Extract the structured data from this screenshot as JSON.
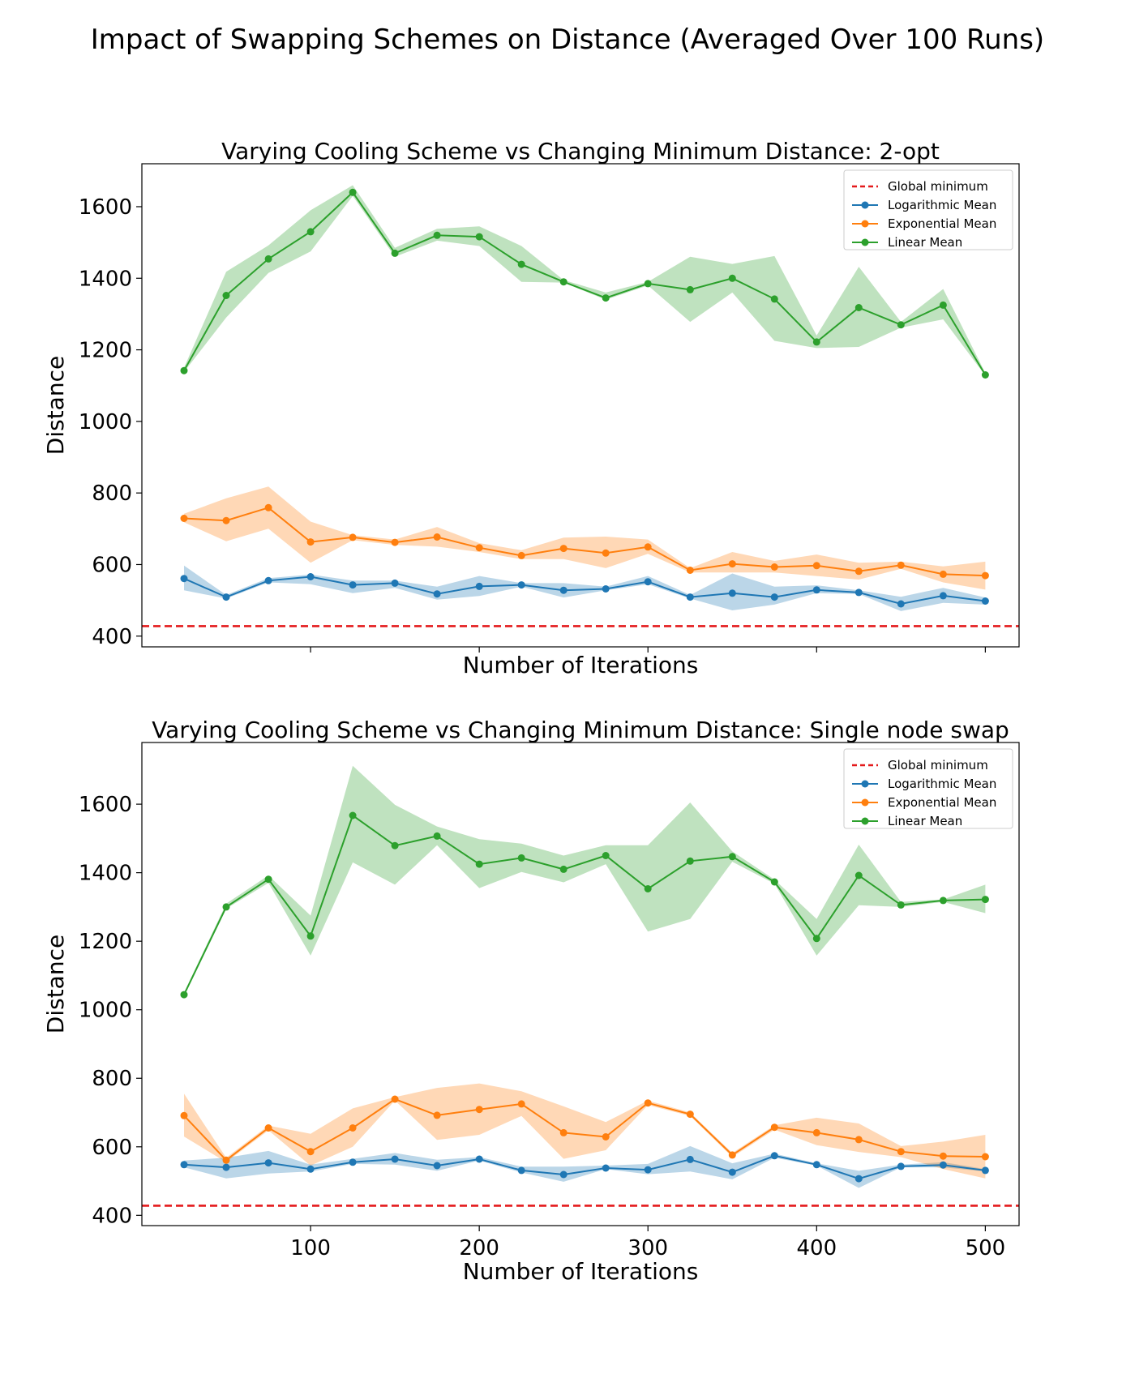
{
  "suptitle": "Impact of Swapping Schemes on Distance (Averaged Over 100 Runs)",
  "colors": {
    "global_min": "#e41a1c",
    "logarithmic": "#1f77b4",
    "exponential": "#ff7f0e",
    "linear": "#2ca02c"
  },
  "chart_data": [
    {
      "type": "line",
      "title": "Varying Cooling Scheme vs Changing Minimum Distance: 2-opt",
      "xlabel": "Number of Iterations",
      "ylabel": "Distance",
      "xlim": [
        0,
        520
      ],
      "ylim": [
        370,
        1720
      ],
      "xticks": [],
      "yticks": [
        400,
        600,
        800,
        1000,
        1200,
        1400,
        1600
      ],
      "legend_position": "top-right",
      "global_minimum": {
        "name": "Global minimum",
        "value": 428
      },
      "x": [
        25,
        50,
        75,
        100,
        125,
        150,
        175,
        200,
        225,
        250,
        275,
        300,
        325,
        350,
        375,
        400,
        425,
        450,
        475,
        500
      ],
      "series": [
        {
          "name": "Logarithmic Mean",
          "color_key": "logarithmic",
          "values": [
            561,
            509,
            555,
            566,
            543,
            548,
            518,
            539,
            543,
            528,
            532,
            552,
            509,
            520,
            509,
            529,
            522,
            490,
            513,
            498
          ],
          "lower": [
            528,
            505,
            550,
            545,
            520,
            535,
            502,
            512,
            538,
            508,
            528,
            545,
            505,
            472,
            488,
            520,
            518,
            470,
            493,
            488
          ],
          "upper": [
            597,
            515,
            562,
            572,
            555,
            555,
            538,
            568,
            548,
            548,
            538,
            568,
            515,
            575,
            538,
            542,
            528,
            510,
            535,
            508
          ]
        },
        {
          "name": "Exponential Mean",
          "color_key": "exponential",
          "values": [
            729,
            723,
            759,
            663,
            676,
            662,
            677,
            647,
            625,
            645,
            632,
            649,
            584,
            602,
            593,
            597,
            581,
            598,
            573,
            569
          ],
          "lower": [
            718,
            665,
            700,
            605,
            668,
            655,
            650,
            635,
            615,
            615,
            590,
            630,
            578,
            578,
            578,
            568,
            558,
            588,
            550,
            530
          ],
          "upper": [
            742,
            785,
            818,
            720,
            682,
            670,
            705,
            660,
            640,
            675,
            678,
            670,
            590,
            635,
            610,
            628,
            605,
            608,
            595,
            608
          ]
        },
        {
          "name": "Linear Mean",
          "color_key": "linear",
          "values": [
            1142,
            1352,
            1454,
            1530,
            1640,
            1470,
            1520,
            1516,
            1439,
            1390,
            1345,
            1385,
            1368,
            1400,
            1342,
            1222,
            1318,
            1270,
            1325,
            1130
          ],
          "lower": [
            1138,
            1290,
            1415,
            1475,
            1630,
            1460,
            1505,
            1490,
            1390,
            1388,
            1340,
            1380,
            1278,
            1360,
            1225,
            1205,
            1208,
            1262,
            1285,
            1128
          ],
          "upper": [
            1150,
            1418,
            1492,
            1590,
            1660,
            1485,
            1538,
            1545,
            1490,
            1395,
            1360,
            1390,
            1460,
            1440,
            1462,
            1240,
            1432,
            1278,
            1370,
            1135
          ]
        }
      ]
    },
    {
      "type": "line",
      "title": "Varying Cooling Scheme vs Changing Minimum Distance: Single node swap",
      "xlabel": "Number of Iterations",
      "ylabel": "Distance",
      "xlim": [
        0,
        520
      ],
      "ylim": [
        370,
        1780
      ],
      "xticks": [
        100,
        200,
        300,
        400,
        500
      ],
      "yticks": [
        400,
        600,
        800,
        1000,
        1200,
        1400,
        1600
      ],
      "legend_position": "top-right",
      "global_minimum": {
        "name": "Global minimum",
        "value": 428
      },
      "x": [
        25,
        50,
        75,
        100,
        125,
        150,
        175,
        200,
        225,
        250,
        275,
        300,
        325,
        350,
        375,
        400,
        425,
        450,
        475,
        500
      ],
      "series": [
        {
          "name": "Logarithmic Mean",
          "color_key": "logarithmic",
          "values": [
            548,
            540,
            553,
            535,
            555,
            564,
            545,
            564,
            531,
            519,
            538,
            533,
            563,
            526,
            574,
            548,
            507,
            543,
            547,
            531
          ],
          "lower": [
            540,
            508,
            522,
            528,
            550,
            548,
            530,
            560,
            525,
            498,
            535,
            520,
            528,
            505,
            568,
            545,
            480,
            540,
            540,
            528
          ],
          "upper": [
            560,
            568,
            588,
            548,
            565,
            582,
            562,
            570,
            542,
            542,
            545,
            550,
            602,
            552,
            580,
            552,
            530,
            548,
            555,
            535
          ]
        },
        {
          "name": "Exponential Mean",
          "color_key": "exponential",
          "values": [
            691,
            561,
            655,
            586,
            655,
            739,
            692,
            709,
            725,
            641,
            629,
            728,
            695,
            576,
            657,
            641,
            621,
            586,
            573,
            571
          ],
          "lower": [
            630,
            555,
            648,
            545,
            600,
            735,
            620,
            635,
            690,
            565,
            590,
            722,
            690,
            570,
            650,
            605,
            585,
            570,
            535,
            508
          ],
          "upper": [
            755,
            568,
            662,
            638,
            712,
            745,
            772,
            785,
            762,
            718,
            672,
            735,
            700,
            582,
            663,
            685,
            668,
            602,
            615,
            635
          ]
        },
        {
          "name": "Linear Mean",
          "color_key": "linear",
          "values": [
            1044,
            1300,
            1381,
            1215,
            1567,
            1479,
            1507,
            1425,
            1443,
            1410,
            1450,
            1353,
            1434,
            1447,
            1373,
            1208,
            1392,
            1306,
            1319,
            1322
          ],
          "lower": [
            1040,
            1295,
            1370,
            1158,
            1430,
            1365,
            1480,
            1355,
            1402,
            1372,
            1425,
            1228,
            1265,
            1432,
            1368,
            1158,
            1305,
            1300,
            1315,
            1282
          ],
          "upper": [
            1050,
            1310,
            1392,
            1275,
            1712,
            1598,
            1535,
            1498,
            1485,
            1450,
            1480,
            1480,
            1605,
            1462,
            1380,
            1265,
            1482,
            1315,
            1322,
            1365
          ]
        }
      ]
    }
  ]
}
